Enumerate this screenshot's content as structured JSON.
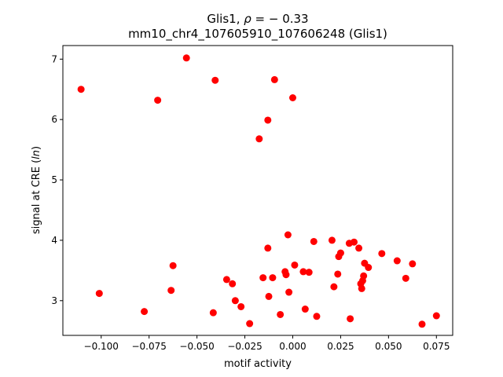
{
  "chart_data": {
    "type": "scatter",
    "title_line1_prefix": "Glis1, ",
    "title_line1_rho": "ρ",
    "title_line1_suffix": " = − 0.33",
    "title_line2": "mm10_chr4_107605910_107606248 (Glis1)",
    "xlabel": "motif activity",
    "ylabel_prefix": "signal at CRE (",
    "ylabel_italic": "ln",
    "ylabel_suffix": ")",
    "xlim": [
      -0.12,
      0.0835
    ],
    "ylim": [
      2.425,
      7.225
    ],
    "grid": false,
    "marker_color": "#ff0000",
    "x_ticks": [
      {
        "value": -0.1,
        "label": "−0.100"
      },
      {
        "value": -0.075,
        "label": "−0.075"
      },
      {
        "value": -0.05,
        "label": "−0.050"
      },
      {
        "value": -0.025,
        "label": "−0.025"
      },
      {
        "value": 0.0,
        "label": "0.000"
      },
      {
        "value": 0.025,
        "label": "0.025"
      },
      {
        "value": 0.05,
        "label": "0.050"
      },
      {
        "value": 0.075,
        "label": "0.075"
      }
    ],
    "y_ticks": [
      {
        "value": 3,
        "label": "3"
      },
      {
        "value": 4,
        "label": "4"
      },
      {
        "value": 5,
        "label": "5"
      },
      {
        "value": 6,
        "label": "6"
      },
      {
        "value": 7,
        "label": "7"
      }
    ],
    "points": [
      {
        "x": -0.1105,
        "y": 6.5
      },
      {
        "x": -0.101,
        "y": 3.12
      },
      {
        "x": -0.0775,
        "y": 2.82
      },
      {
        "x": -0.0705,
        "y": 6.32
      },
      {
        "x": -0.0635,
        "y": 3.17
      },
      {
        "x": -0.0625,
        "y": 3.58
      },
      {
        "x": -0.0555,
        "y": 7.02
      },
      {
        "x": -0.0415,
        "y": 2.8
      },
      {
        "x": -0.0405,
        "y": 6.65
      },
      {
        "x": -0.0345,
        "y": 3.35
      },
      {
        "x": -0.0315,
        "y": 3.28
      },
      {
        "x": -0.03,
        "y": 3.0
      },
      {
        "x": -0.027,
        "y": 2.9
      },
      {
        "x": -0.0225,
        "y": 2.62
      },
      {
        "x": -0.0175,
        "y": 5.68
      },
      {
        "x": -0.0155,
        "y": 3.38
      },
      {
        "x": -0.013,
        "y": 3.87
      },
      {
        "x": -0.013,
        "y": 5.99
      },
      {
        "x": -0.0125,
        "y": 3.07
      },
      {
        "x": -0.0105,
        "y": 3.38
      },
      {
        "x": -0.0095,
        "y": 6.66
      },
      {
        "x": -0.0065,
        "y": 2.77
      },
      {
        "x": -0.004,
        "y": 3.48
      },
      {
        "x": -0.0035,
        "y": 3.43
      },
      {
        "x": -0.0025,
        "y": 4.09
      },
      {
        "x": -0.002,
        "y": 3.14
      },
      {
        "x": 0.0,
        "y": 6.36
      },
      {
        "x": 0.001,
        "y": 3.59
      },
      {
        "x": 0.0055,
        "y": 3.48
      },
      {
        "x": 0.0065,
        "y": 2.86
      },
      {
        "x": 0.0085,
        "y": 3.47
      },
      {
        "x": 0.011,
        "y": 3.98
      },
      {
        "x": 0.0125,
        "y": 2.74
      },
      {
        "x": 0.0205,
        "y": 4.0
      },
      {
        "x": 0.0215,
        "y": 3.23
      },
      {
        "x": 0.0235,
        "y": 3.44
      },
      {
        "x": 0.024,
        "y": 3.73
      },
      {
        "x": 0.025,
        "y": 3.79
      },
      {
        "x": 0.0295,
        "y": 3.95
      },
      {
        "x": 0.03,
        "y": 2.7
      },
      {
        "x": 0.032,
        "y": 3.97
      },
      {
        "x": 0.0345,
        "y": 3.87
      },
      {
        "x": 0.0355,
        "y": 3.28
      },
      {
        "x": 0.036,
        "y": 3.2
      },
      {
        "x": 0.0365,
        "y": 3.33
      },
      {
        "x": 0.037,
        "y": 3.41
      },
      {
        "x": 0.0375,
        "y": 3.62
      },
      {
        "x": 0.0395,
        "y": 3.55
      },
      {
        "x": 0.0465,
        "y": 3.78
      },
      {
        "x": 0.0545,
        "y": 3.66
      },
      {
        "x": 0.059,
        "y": 3.37
      },
      {
        "x": 0.0625,
        "y": 3.61
      },
      {
        "x": 0.0675,
        "y": 2.61
      },
      {
        "x": 0.075,
        "y": 2.75
      }
    ]
  }
}
